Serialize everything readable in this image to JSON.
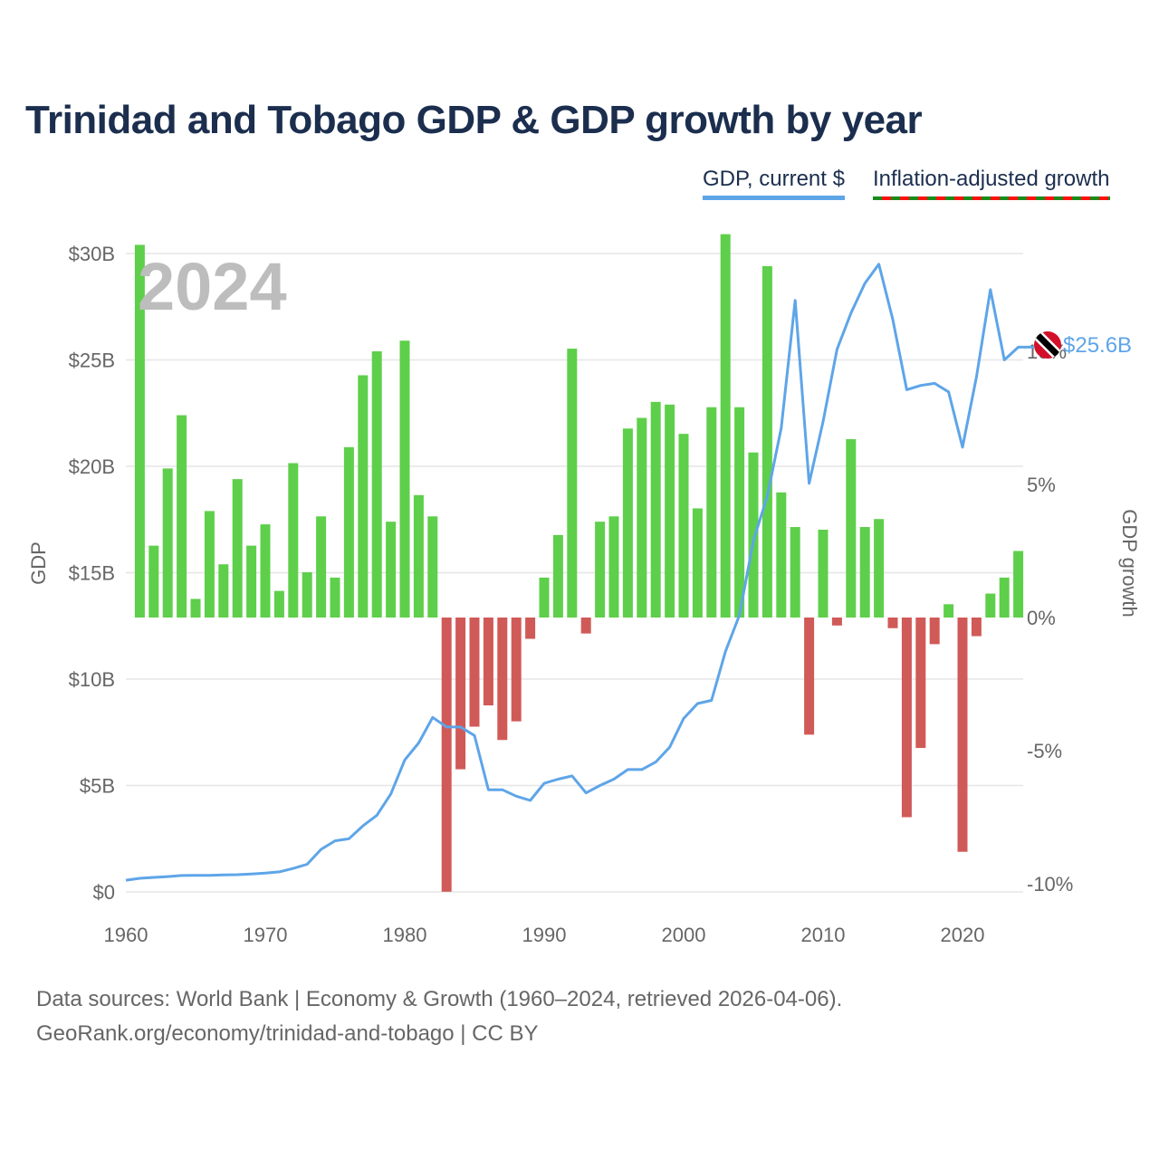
{
  "title": "Trinidad and Tobago GDP & GDP growth by year",
  "legend": {
    "gdp": "GDP, current $",
    "growth": "Inflation-adjusted growth"
  },
  "year_label": "2024",
  "end_label": "$25.6B",
  "footer": {
    "line1": "Data sources: World Bank | Economy & Growth (1960–2024, retrieved 2026-04-06).",
    "line2": "GeoRank.org/economy/trinidad-and-tobago | CC BY"
  },
  "colors": {
    "line": "#5ea5e8",
    "positive": "#5ecf4a",
    "negative": "#d05a58",
    "flag_red": "#d2102a"
  },
  "chart_data": {
    "type": "bar+line",
    "title": "Trinidad and Tobago GDP & GDP growth by year",
    "xlabel": "",
    "ylabel": "GDP",
    "y2label": "GDP growth",
    "xlim": [
      1960,
      2024
    ],
    "ylim": [
      0,
      30
    ],
    "y2lim": [
      -10,
      14
    ],
    "x_ticks": [
      1960,
      1970,
      1980,
      1990,
      2000,
      2010,
      2020
    ],
    "y_ticks": [
      {
        "v": 0,
        "label": "$0"
      },
      {
        "v": 5,
        "label": "$5B"
      },
      {
        "v": 10,
        "label": "$10B"
      },
      {
        "v": 15,
        "label": "$15B"
      },
      {
        "v": 20,
        "label": "$20B"
      },
      {
        "v": 25,
        "label": "$25B"
      },
      {
        "v": 30,
        "label": "$30B"
      }
    ],
    "y2_ticks": [
      {
        "v": -10,
        "label": "-10%"
      },
      {
        "v": -5,
        "label": "-5%"
      },
      {
        "v": 0,
        "label": "0%"
      },
      {
        "v": 5,
        "label": "5%"
      },
      {
        "v": 10,
        "label": "10%"
      }
    ],
    "gdp_years_start": 1960,
    "gdp_billion": [
      0.55,
      0.64,
      0.68,
      0.72,
      0.77,
      0.78,
      0.78,
      0.8,
      0.81,
      0.84,
      0.88,
      0.94,
      1.1,
      1.3,
      2.0,
      2.4,
      2.5,
      3.1,
      3.6,
      4.6,
      6.2,
      7.0,
      8.2,
      7.75,
      7.75,
      7.35,
      4.8,
      4.8,
      4.5,
      4.3,
      5.1,
      5.3,
      5.45,
      4.65,
      5.0,
      5.3,
      5.75,
      5.75,
      6.1,
      6.8,
      8.15,
      8.85,
      9.0,
      11.3,
      13.0,
      16.5,
      18.6,
      21.8,
      27.8,
      19.2,
      22.1,
      25.5,
      27.2,
      28.6,
      29.5,
      26.9,
      23.6,
      23.8,
      23.9,
      23.5,
      20.9,
      24.2,
      28.3,
      25.0,
      25.6
    ],
    "growth_years_start": 1961,
    "growth_pct": [
      14.0,
      2.7,
      5.6,
      7.6,
      0.7,
      4.0,
      2.0,
      5.2,
      2.7,
      3.5,
      1.0,
      5.8,
      1.7,
      3.8,
      1.5,
      6.4,
      9.1,
      10.0,
      3.6,
      10.4,
      4.6,
      3.8,
      -10.3,
      -5.7,
      -4.1,
      -3.3,
      -4.6,
      -3.9,
      -0.8,
      1.5,
      3.1,
      10.1,
      -0.6,
      3.6,
      3.8,
      7.1,
      7.5,
      8.1,
      8.0,
      6.9,
      4.1,
      7.9,
      14.4,
      7.9,
      6.2,
      13.2,
      4.7,
      3.4,
      -4.4,
      3.3,
      -0.3,
      6.7,
      3.4,
      3.7,
      -0.4,
      -7.5,
      -4.9,
      -1.0,
      0.5,
      -8.8,
      -0.7,
      0.9,
      1.5,
      2.5
    ]
  }
}
